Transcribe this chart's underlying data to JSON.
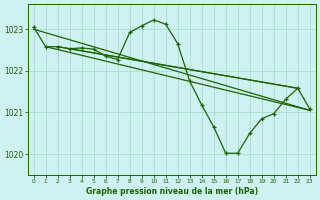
{
  "title": "Graphe pression niveau de la mer (hPa)",
  "bg_color": "#cef1f1",
  "grid_color": "#aaddcc",
  "line_color": "#1a6600",
  "xlim": [
    -0.5,
    23.5
  ],
  "ylim": [
    1019.5,
    1023.6
  ],
  "yticks": [
    1020,
    1021,
    1022,
    1023
  ],
  "xticks": [
    0,
    1,
    2,
    3,
    4,
    5,
    6,
    7,
    8,
    9,
    10,
    11,
    12,
    13,
    14,
    15,
    16,
    17,
    18,
    19,
    20,
    21,
    22,
    23
  ],
  "marked_line": {
    "x": [
      0,
      1,
      2,
      3,
      4,
      5,
      6,
      7,
      8,
      9,
      10,
      11,
      12,
      13,
      14,
      15,
      16,
      17,
      18,
      19,
      20,
      21,
      22,
      23
    ],
    "y": [
      1023.05,
      1022.58,
      1022.58,
      1022.53,
      1022.55,
      1022.52,
      1022.35,
      1022.27,
      1022.92,
      1023.08,
      1023.22,
      1023.12,
      1022.65,
      1021.75,
      1021.18,
      1020.65,
      1020.02,
      1020.02,
      1020.5,
      1020.85,
      1020.97,
      1021.32,
      1021.58,
      1021.08
    ]
  },
  "solid_lines": [
    {
      "x": [
        0,
        23
      ],
      "y": [
        1023.0,
        1021.05
      ]
    },
    {
      "x": [
        1,
        23
      ],
      "y": [
        1022.58,
        1021.05
      ]
    },
    {
      "x": [
        2,
        22
      ],
      "y": [
        1022.58,
        1021.58
      ]
    },
    {
      "x": [
        3,
        22
      ],
      "y": [
        1022.53,
        1021.58
      ]
    }
  ]
}
